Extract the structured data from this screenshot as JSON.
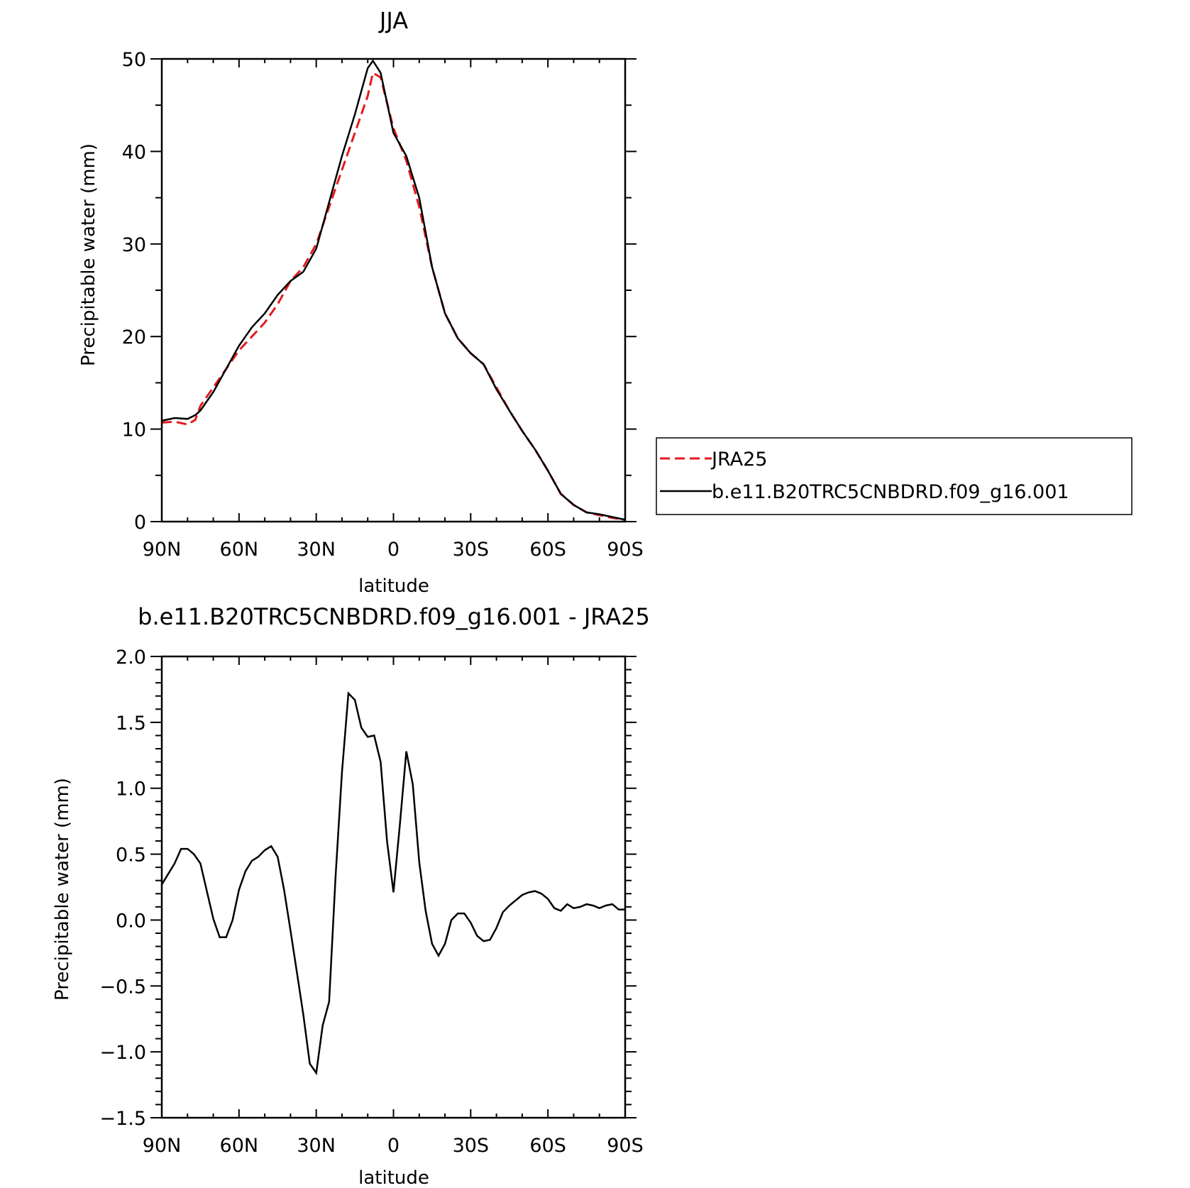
{
  "chart_data": [
    {
      "type": "line",
      "title": "JJA",
      "xlabel": "latitude",
      "ylabel": "Precipitable water (mm)",
      "xlim": [
        90,
        -90
      ],
      "ylim": [
        0,
        50
      ],
      "x_ticks": [
        90,
        60,
        30,
        0,
        -30,
        -60,
        -90
      ],
      "x_tick_labels": [
        "90N",
        "60N",
        "30N",
        "0",
        "30S",
        "60S",
        "90S"
      ],
      "y_ticks": [
        0,
        10,
        20,
        30,
        40,
        50
      ],
      "y_tick_labels": [
        "0",
        "10",
        "20",
        "30",
        "40",
        "50"
      ],
      "grid": false,
      "legend_placement": "right",
      "series": [
        {
          "name": "JRA25",
          "color": "#e41a1c",
          "dash": "dashed",
          "x": [
            90,
            85,
            80,
            77,
            75,
            70,
            65,
            60,
            55,
            50,
            45,
            40,
            35,
            30,
            25,
            20,
            15,
            10,
            8,
            5,
            0,
            -5,
            -10,
            -15,
            -20,
            -25,
            -30,
            -35,
            -40,
            -45,
            -50,
            -55,
            -60,
            -65,
            -70,
            -75,
            -80,
            -85,
            -90
          ],
          "y": [
            10.7,
            10.8,
            10.5,
            11.0,
            12.5,
            14.5,
            16.5,
            18.5,
            20.0,
            21.5,
            23.5,
            26.0,
            27.5,
            30.0,
            34.0,
            38.0,
            42.0,
            46.0,
            48.5,
            48.0,
            42.5,
            39.0,
            34.0,
            27.5,
            22.5,
            19.8,
            18.2,
            17.0,
            14.5,
            12.0,
            9.8,
            7.8,
            5.5,
            3.0,
            1.8,
            1.0,
            0.7,
            0.4,
            0.2
          ]
        },
        {
          "name": "b.e11.B20TRC5CNBDRD.f09_g16.001",
          "color": "#000000",
          "dash": "solid",
          "x": [
            90,
            85,
            80,
            77,
            75,
            70,
            65,
            60,
            55,
            50,
            45,
            40,
            35,
            30,
            25,
            20,
            15,
            10,
            8,
            5,
            0,
            -5,
            -10,
            -15,
            -20,
            -25,
            -30,
            -35,
            -40,
            -45,
            -50,
            -55,
            -60,
            -65,
            -70,
            -75,
            -80,
            -85,
            -90
          ],
          "y": [
            10.9,
            11.2,
            11.1,
            11.5,
            12.0,
            14.0,
            16.5,
            19.0,
            21.0,
            22.5,
            24.5,
            26.0,
            27.0,
            29.5,
            34.5,
            39.5,
            44.0,
            49.0,
            49.8,
            48.5,
            42.0,
            39.5,
            35.0,
            27.5,
            22.5,
            19.8,
            18.2,
            17.0,
            14.3,
            12.0,
            9.8,
            7.8,
            5.5,
            3.0,
            1.8,
            1.0,
            0.8,
            0.5,
            0.2
          ]
        }
      ]
    },
    {
      "type": "line",
      "title": "b.e11.B20TRC5CNBDRD.f09_g16.001 - JRA25",
      "xlabel": "latitude",
      "ylabel": "Precipitable water (mm)",
      "xlim": [
        90,
        -90
      ],
      "ylim": [
        -1.5,
        2.0
      ],
      "x_ticks": [
        90,
        60,
        30,
        0,
        -30,
        -60,
        -90
      ],
      "x_tick_labels": [
        "90N",
        "60N",
        "30N",
        "0",
        "30S",
        "60S",
        "90S"
      ],
      "y_ticks": [
        -1.5,
        -1.0,
        -0.5,
        0.0,
        0.5,
        1.0,
        1.5,
        2.0
      ],
      "y_tick_labels": [
        "−1.5",
        "−1.0",
        "−0.5",
        "0.0",
        "0.5",
        "1.0",
        "1.5",
        "2.0"
      ],
      "grid": false,
      "series": [
        {
          "color": "#000000",
          "dash": "solid",
          "x": [
            90,
            87.5,
            85,
            82.5,
            80,
            77.5,
            75,
            72.5,
            70,
            67.5,
            65,
            62.5,
            60,
            57.5,
            55,
            52.5,
            50,
            47.5,
            45,
            42.5,
            40,
            37.5,
            35,
            32.5,
            30,
            27.5,
            25,
            22.5,
            20,
            17.5,
            15,
            12.5,
            10,
            7.5,
            5,
            2.5,
            0,
            -2.5,
            -5,
            -7.5,
            -10,
            -12.5,
            -15,
            -17.5,
            -20,
            -22.5,
            -25,
            -27.5,
            -30,
            -32.5,
            -35,
            -37.5,
            -40,
            -42.5,
            -45,
            -47.5,
            -50,
            -52.5,
            -55,
            -57.5,
            -60,
            -62.5,
            -65,
            -67.5,
            -70,
            -72.5,
            -75,
            -77.5,
            -80,
            -82.5,
            -85,
            -87.5,
            -90
          ],
          "y": [
            0.27,
            0.35,
            0.43,
            0.54,
            0.54,
            0.5,
            0.43,
            0.22,
            0.01,
            -0.13,
            -0.13,
            0.0,
            0.23,
            0.37,
            0.45,
            0.48,
            0.53,
            0.56,
            0.48,
            0.23,
            -0.08,
            -0.4,
            -0.72,
            -1.09,
            -1.16,
            -0.8,
            -0.62,
            0.33,
            1.12,
            1.72,
            1.67,
            1.46,
            1.39,
            1.4,
            1.2,
            0.6,
            0.21,
            0.73,
            1.28,
            1.03,
            0.44,
            0.07,
            -0.18,
            -0.27,
            -0.18,
            0.0,
            0.05,
            0.05,
            -0.02,
            -0.12,
            -0.16,
            -0.15,
            -0.06,
            0.06,
            0.11,
            0.15,
            0.19,
            0.21,
            0.22,
            0.2,
            0.16,
            0.09,
            0.07,
            0.12,
            0.09,
            0.1,
            0.12,
            0.11,
            0.09,
            0.11,
            0.12,
            0.08,
            0.08
          ]
        }
      ]
    }
  ]
}
